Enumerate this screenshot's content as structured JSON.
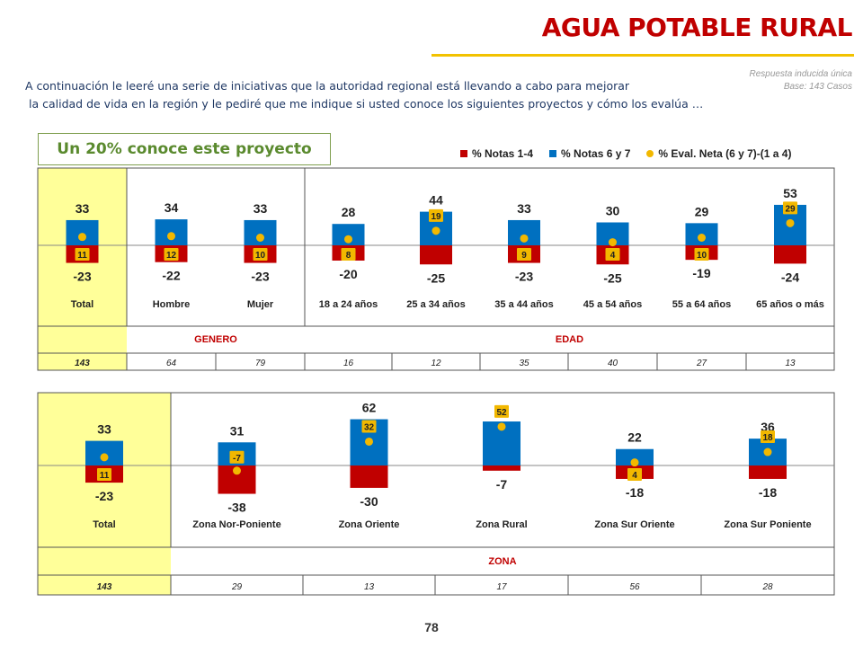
{
  "header": {
    "title": "AGUA POTABLE RURAL",
    "note_line1": "Respuesta inducida única",
    "note_line2": "Base: 143 Casos",
    "intro_line1": "A continuación le leeré una serie de iniciativas que la autoridad regional está llevando a cabo para mejorar",
    "intro_line2": "la calidad de vida en la región y le pediré que me indique si usted conoce los siguientes proyectos y cómo los evalúa …",
    "badge": "Un 20% conoce este proyecto",
    "page_number": "78"
  },
  "colors": {
    "notas_1_4": "#c00000",
    "notas_6_7": "#0070c0",
    "neta": "#f2b800",
    "highlight": "#ffff99",
    "accent": "#c00000"
  },
  "chart_data": [
    {
      "type": "bar",
      "categories": [
        "Total",
        "Hombre",
        "Mujer",
        "18 a 24 años",
        "25 a 34 años",
        "35 a 44 años",
        "45 a 54 años",
        "55 a 64 años",
        "65 años o más"
      ],
      "series": [
        {
          "name": "% Notas 1-4",
          "values": [
            -23,
            -22,
            -23,
            -20,
            -25,
            -23,
            -25,
            -19,
            -24
          ]
        },
        {
          "name": "% Notas 6 y 7",
          "values": [
            33,
            34,
            33,
            28,
            44,
            33,
            30,
            29,
            53
          ]
        },
        {
          "name": "% Eval. Neta (6 y 7)-(1 a 4)",
          "values": [
            11,
            12,
            10,
            8,
            19,
            9,
            4,
            10,
            29
          ]
        }
      ],
      "groups": [
        {
          "label": "GENERO",
          "span": [
            1,
            2
          ]
        },
        {
          "label": "EDAD",
          "span": [
            3,
            8
          ]
        }
      ],
      "bases": [
        "143",
        "64",
        "79",
        "16",
        "12",
        "35",
        "40",
        "27",
        "13"
      ]
    },
    {
      "type": "bar",
      "categories": [
        "Total",
        "Zona Nor-Poniente",
        "Zona Oriente",
        "Zona Rural",
        "Zona Sur Oriente",
        "Zona Sur Poniente"
      ],
      "series": [
        {
          "name": "% Notas 1-4",
          "values": [
            -23,
            -38,
            -30,
            -7,
            -18,
            -18
          ]
        },
        {
          "name": "% Notas 6 y 7",
          "values": [
            33,
            31,
            62,
            59,
            22,
            36
          ]
        },
        {
          "name": "% Eval. Neta (6 y 7)-(1 a 4)",
          "values": [
            11,
            -7,
            32,
            52,
            4,
            18
          ]
        }
      ],
      "groups": [
        {
          "label": "ZONA",
          "span": [
            1,
            5
          ]
        }
      ],
      "bases": [
        "143",
        "29",
        "13",
        "17",
        "56",
        "28"
      ]
    }
  ]
}
